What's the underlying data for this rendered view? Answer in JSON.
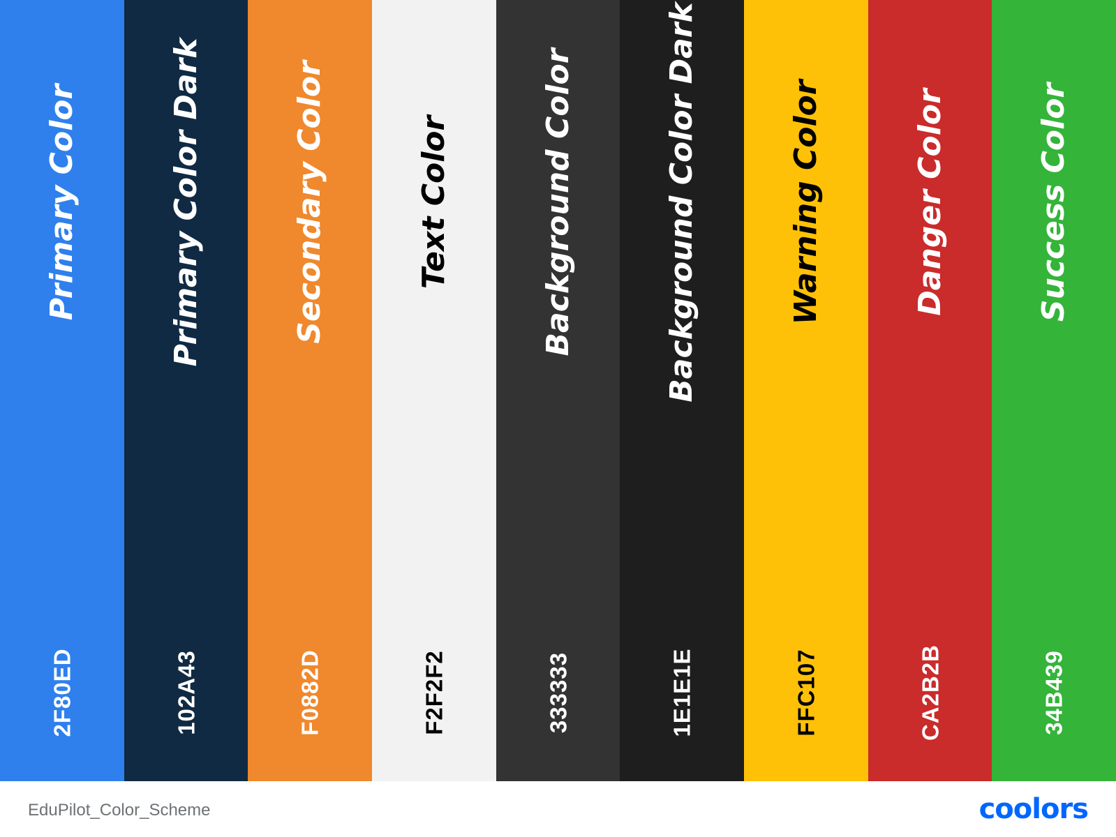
{
  "swatches": [
    {
      "name": "Primary Color",
      "hex": "2F80ED",
      "color": "#2F80ED",
      "text_color": "#FFFFFF"
    },
    {
      "name": "Primary Color Dark",
      "hex": "102A43",
      "color": "#102A43",
      "text_color": "#FFFFFF"
    },
    {
      "name": "Secondary Color",
      "hex": "F0882D",
      "color": "#F0882D",
      "text_color": "#FFFFFF"
    },
    {
      "name": "Text Color",
      "hex": "F2F2F2",
      "color": "#F2F2F2",
      "text_color": "#000000"
    },
    {
      "name": "Background Color",
      "hex": "333333",
      "color": "#333333",
      "text_color": "#FFFFFF"
    },
    {
      "name": "Background Color Dark",
      "hex": "1E1E1E",
      "color": "#1E1E1E",
      "text_color": "#FFFFFF"
    },
    {
      "name": "Warning Color",
      "hex": "FFC107",
      "color": "#FFC107",
      "text_color": "#000000"
    },
    {
      "name": "Danger Color",
      "hex": "CA2B2B",
      "color": "#CA2B2B",
      "text_color": "#FFFFFF"
    },
    {
      "name": "Success Color",
      "hex": "34B439",
      "color": "#34B439",
      "text_color": "#FFFFFF"
    }
  ],
  "footer": {
    "scheme_name": "EduPilot_Color_Scheme",
    "logo_text": "coolors",
    "logo_color": "#0066FF"
  }
}
